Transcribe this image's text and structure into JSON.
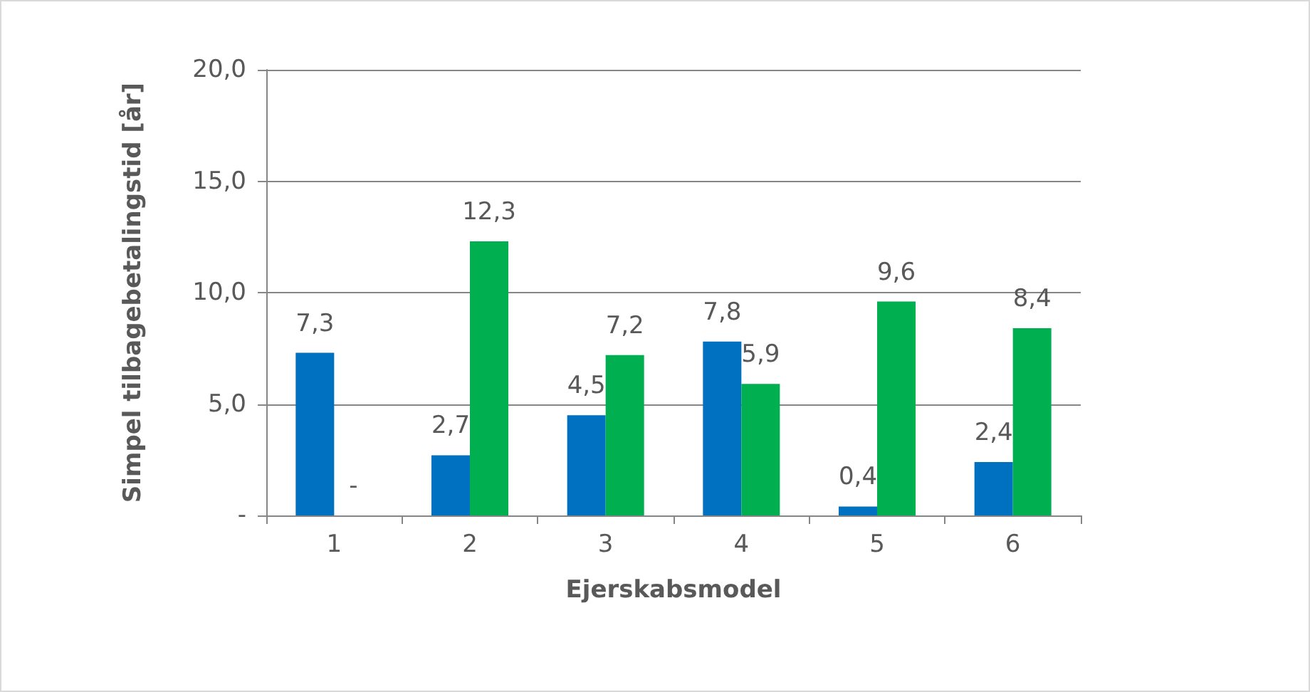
{
  "chart_data": {
    "type": "bar",
    "xlabel": "Ejerskabsmodel",
    "ylabel": "Simpel tilbagebetalingstid [år]",
    "categories": [
      "1",
      "2",
      "3",
      "4",
      "5",
      "6"
    ],
    "series": [
      {
        "color": "#0070c0",
        "values": [
          7.3,
          2.7,
          4.5,
          7.8,
          0.4,
          2.4
        ],
        "value_labels": [
          "7,3",
          "2,7",
          "4,5",
          "7,8",
          "0,4",
          "2,4"
        ]
      },
      {
        "color": "#00b050",
        "values": [
          0,
          12.3,
          7.2,
          5.9,
          9.6,
          8.4
        ],
        "value_labels": [
          "-",
          "12,3",
          "7,2",
          "5,9",
          "9,6",
          "8,4"
        ]
      }
    ],
    "ylim": [
      0,
      20
    ],
    "yticks": [
      {
        "value": 0,
        "label": "-"
      },
      {
        "value": 5,
        "label": "5,0"
      },
      {
        "value": 10,
        "label": "10,0"
      },
      {
        "value": 15,
        "label": "15,0"
      },
      {
        "value": 20,
        "label": "20,0"
      }
    ],
    "grid": "y"
  }
}
